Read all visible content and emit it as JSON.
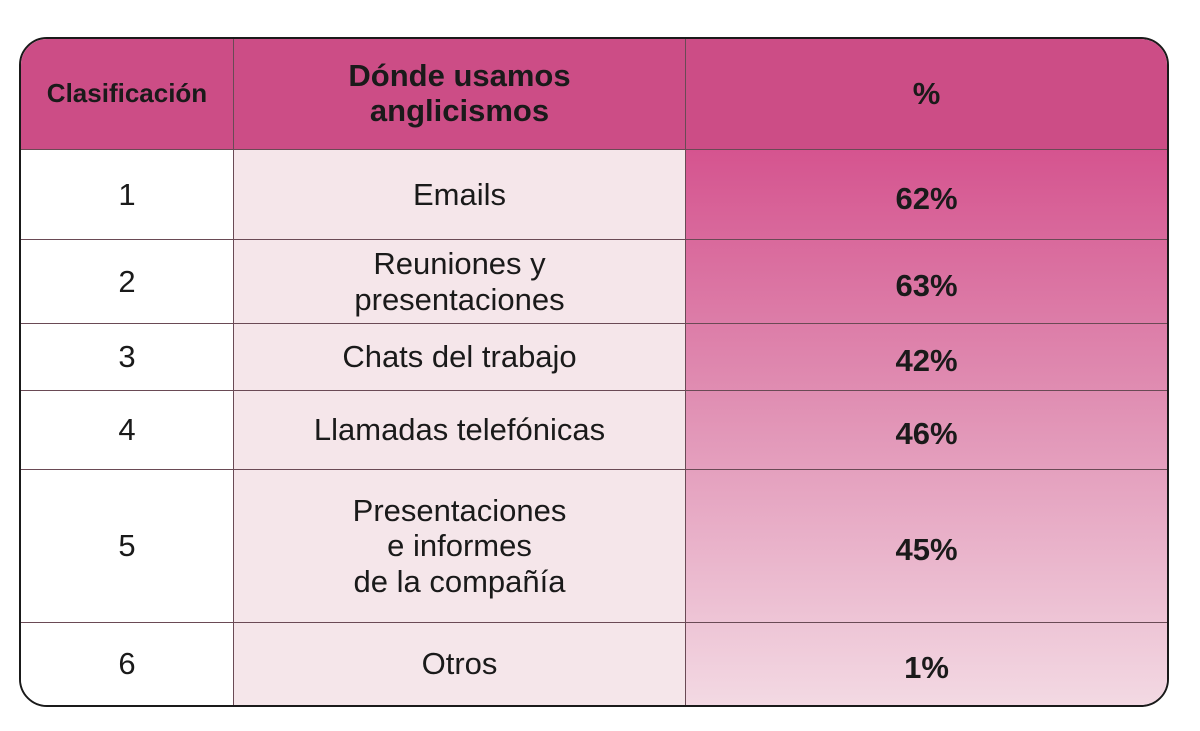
{
  "chart_data": {
    "type": "table",
    "columns": [
      "Clasificación",
      "Dónde usamos anglicismos",
      "%"
    ],
    "rows": [
      {
        "rank": "1",
        "place": "Emails",
        "percent": "62%"
      },
      {
        "rank": "2",
        "place": "Reuniones y\npresentaciones",
        "percent": "63%"
      },
      {
        "rank": "3",
        "place": "Chats del trabajo",
        "percent": "42%"
      },
      {
        "rank": "4",
        "place": "Llamadas telefónicas",
        "percent": "46%"
      },
      {
        "rank": "5",
        "place": "Presentaciones\ne informes\nde la compañía",
        "percent": "45%"
      },
      {
        "rank": "6",
        "place": "Otros",
        "percent": "1%"
      }
    ]
  },
  "colors": {
    "header": "#cc4d86",
    "place_column": "#f5e6ea",
    "percent_gradient_top": "#d5548f",
    "percent_gradient_bottom": "#f3d9e3",
    "border": "#1a1a1a"
  }
}
